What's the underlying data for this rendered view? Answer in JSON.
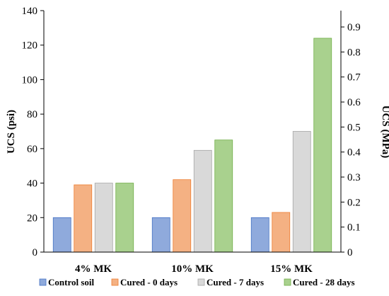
{
  "chart_data": {
    "type": "bar",
    "categories": [
      "4% MK",
      "10% MK",
      "15% MK"
    ],
    "series": [
      {
        "name": "Control soil",
        "values": [
          20,
          20,
          20
        ],
        "color": "#8faadc",
        "stroke": "#4472c4"
      },
      {
        "name": "Cured - 0 days",
        "values": [
          39,
          42,
          23
        ],
        "color": "#f4b183",
        "stroke": "#ed7d31"
      },
      {
        "name": "Cured - 7 days",
        "values": [
          40,
          59,
          70
        ],
        "color": "#d9d9d9",
        "stroke": "#a5a5a5"
      },
      {
        "name": "Cured - 28 days",
        "values": [
          40,
          65,
          124
        ],
        "color": "#a9d18e",
        "stroke": "#70ad47"
      }
    ],
    "ylabel": "UCS (psi)",
    "y2label": "UCS (MPa)",
    "ylim": [
      0,
      140
    ],
    "yticks": [
      "0",
      "20",
      "40",
      "60",
      "80",
      "100",
      "120",
      "140"
    ],
    "y2lim": [
      0,
      0.9653
    ],
    "y2ticks": [
      "0",
      "0.1",
      "0.2",
      "0.3",
      "0.4",
      "0.5",
      "0.6",
      "0.7",
      "0.8",
      "0.9"
    ],
    "legend_position": "bottom",
    "grid": false
  }
}
